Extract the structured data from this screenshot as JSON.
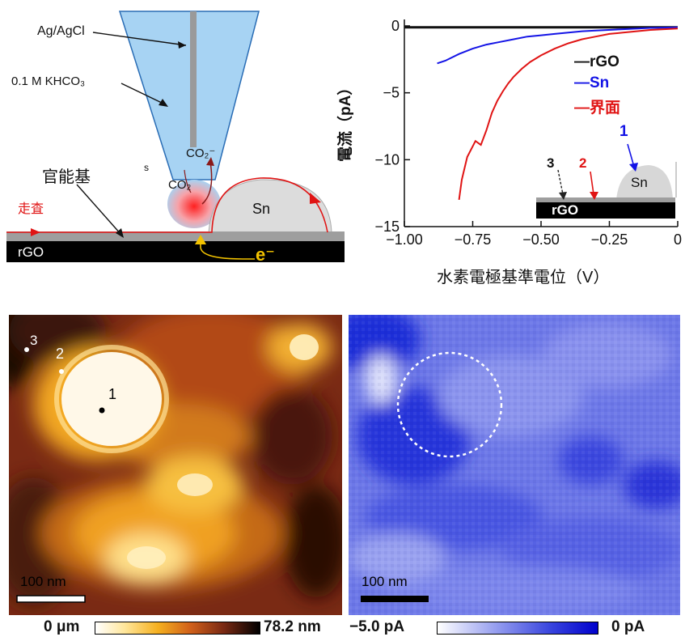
{
  "schematic": {
    "electrode": "Ag/AgCl",
    "electrolyte": "0.1 M KHCO₃",
    "small_s": "s",
    "co2_minus": "CO₂⁻",
    "co2": "CO₂",
    "functional_group": "官能基",
    "scan": "走査",
    "sn": "Sn",
    "rgo": "rGO",
    "electron": "e⁻",
    "colors": {
      "pipette": "#a7d3f3",
      "scan_line": "#e01414",
      "electron": "#f2c200"
    }
  },
  "chart_data": {
    "type": "line",
    "xlabel": "水素電極基準電位（V）",
    "ylabel": "電流（pA）",
    "xlim": [
      -1.0,
      0
    ],
    "ylim": [
      -15,
      0
    ],
    "x_ticks": [
      "−1.00",
      "−0.75",
      "−0.50",
      "−0.25",
      "0"
    ],
    "y_ticks": [
      "0",
      "−5",
      "−10",
      "−15"
    ],
    "grid": false,
    "legend_position": "top-right",
    "series": [
      {
        "name": "—rGO",
        "color": "#111111",
        "x": [
          -1.0,
          -0.8,
          -0.6,
          -0.4,
          -0.2,
          0.0
        ],
        "y": [
          -0.1,
          -0.1,
          -0.1,
          -0.1,
          -0.1,
          -0.1
        ]
      },
      {
        "name": "—Sn",
        "color": "#1414e6",
        "x": [
          -0.88,
          -0.85,
          -0.8,
          -0.75,
          -0.7,
          -0.65,
          -0.6,
          -0.55,
          -0.5,
          -0.45,
          -0.4,
          -0.35,
          -0.3,
          -0.2,
          -0.1,
          0.0
        ],
        "y": [
          -2.8,
          -2.6,
          -2.1,
          -1.7,
          -1.4,
          -1.2,
          -1.0,
          -0.8,
          -0.7,
          -0.6,
          -0.5,
          -0.4,
          -0.35,
          -0.25,
          -0.15,
          -0.1
        ]
      },
      {
        "name": "—界面",
        "color": "#e01414",
        "x": [
          -0.8,
          -0.79,
          -0.77,
          -0.74,
          -0.72,
          -0.7,
          -0.68,
          -0.66,
          -0.64,
          -0.62,
          -0.6,
          -0.57,
          -0.54,
          -0.5,
          -0.45,
          -0.4,
          -0.35,
          -0.3,
          -0.25,
          -0.2,
          -0.1,
          0.0
        ],
        "y": [
          -13.0,
          -11.5,
          -9.8,
          -8.6,
          -8.9,
          -7.8,
          -6.5,
          -5.6,
          -4.9,
          -4.3,
          -3.8,
          -3.2,
          -2.7,
          -2.2,
          -1.7,
          -1.3,
          -1.0,
          -0.8,
          -0.6,
          -0.5,
          -0.3,
          -0.2
        ]
      }
    ],
    "inset": {
      "points": [
        "3",
        "2",
        "1"
      ],
      "sn": "Sn",
      "rgo": "rGO"
    }
  },
  "topo_map": {
    "points": [
      "3",
      "2",
      "1"
    ],
    "scale_bar": "100 nm",
    "colorbar_min": "0 μm",
    "colorbar_max": "78.2 nm"
  },
  "current_map": {
    "scale_bar": "100 nm",
    "colorbar_min": "−5.0 pA",
    "colorbar_max": "0 pA"
  }
}
